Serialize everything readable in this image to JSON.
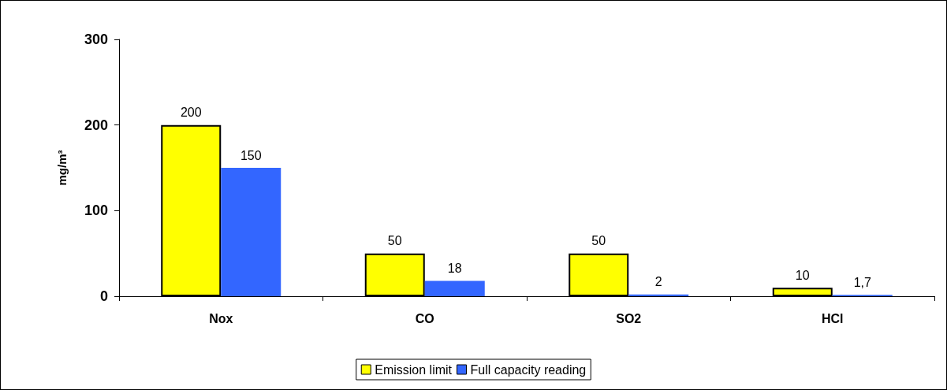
{
  "chart_data": {
    "type": "bar",
    "ylabel": "mg/m³",
    "categories": [
      "Nox",
      "CO",
      "SO2",
      "HCl"
    ],
    "series": [
      {
        "name": "Emission limit",
        "color": "#ffff00",
        "values": [
          200,
          50,
          50,
          10
        ],
        "value_labels": [
          "200",
          "50",
          "50",
          "10"
        ]
      },
      {
        "name": "Full capacity reading",
        "color": "#3366ff",
        "values": [
          150,
          18,
          2,
          1.7
        ],
        "value_labels": [
          "150",
          "18",
          "2",
          "1,7"
        ]
      }
    ],
    "ylim": [
      0,
      300
    ],
    "yticks": [
      0,
      100,
      200,
      300
    ],
    "grid": false,
    "legend": "bottom"
  }
}
